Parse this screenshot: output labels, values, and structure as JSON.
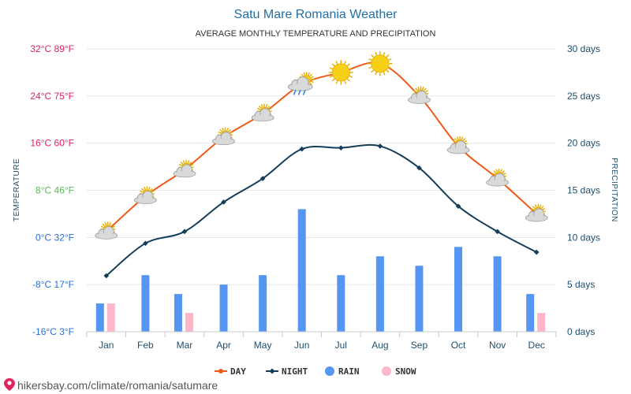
{
  "page": {
    "source_text": "hikersbay.com/climate/romania/satumare"
  },
  "chart_data": {
    "type": "line",
    "title": "Satu Mare Romania Weather",
    "subtitle": "AVERAGE MONTHLY TEMPERATURE AND PRECIPITATION",
    "ylabel_left": "TEMPERATURE",
    "ylabel_right": "PRECIPITATION",
    "categories": [
      "Jan",
      "Feb",
      "Mar",
      "Apr",
      "May",
      "Jun",
      "Jul",
      "Aug",
      "Sep",
      "Oct",
      "Nov",
      "Dec"
    ],
    "temp_ylim": [
      -16,
      32
    ],
    "precip_ylim": [
      0,
      30
    ],
    "left_ticks": [
      {
        "value": 32,
        "label": "32°C 89°F",
        "color": "#e0245e"
      },
      {
        "value": 24,
        "label": "24°C 75°F",
        "color": "#e0245e"
      },
      {
        "value": 16,
        "label": "16°C 60°F",
        "color": "#e0245e"
      },
      {
        "value": 8,
        "label": "8°C 46°F",
        "color": "#5cb85c"
      },
      {
        "value": 0,
        "label": "0°C 32°F",
        "color": "#2a6fd6"
      },
      {
        "value": -8,
        "label": "-8°C 17°F",
        "color": "#2a6fd6"
      },
      {
        "value": -16,
        "label": "-16°C 3°F",
        "color": "#2a6fd6"
      }
    ],
    "right_ticks": [
      {
        "value": 30,
        "label": "30 days"
      },
      {
        "value": 25,
        "label": "25 days"
      },
      {
        "value": 20,
        "label": "20 days"
      },
      {
        "value": 15,
        "label": "15 days"
      },
      {
        "value": 10,
        "label": "10 days"
      },
      {
        "value": 5,
        "label": "5 days"
      },
      {
        "value": 0,
        "label": "0 days"
      }
    ],
    "grid": true,
    "legend": "bottom",
    "series": [
      {
        "name": "DAY",
        "kind": "line",
        "color": "#f05a1a",
        "axis": "temp",
        "values": [
          1,
          7,
          11.5,
          17,
          21,
          26,
          28,
          29.5,
          24,
          15.5,
          10,
          4
        ]
      },
      {
        "name": "NIGHT",
        "kind": "line",
        "color": "#143d59",
        "axis": "temp",
        "values": [
          -6.5,
          -1,
          1,
          6,
          10,
          15,
          15.2,
          15.5,
          11.8,
          5.3,
          1,
          -2.5
        ]
      },
      {
        "name": "RAIN",
        "kind": "bar",
        "color": "#5596f2",
        "axis": "precip",
        "values": [
          3,
          6,
          4,
          5,
          6,
          13,
          6,
          8,
          7,
          9,
          8,
          4
        ]
      },
      {
        "name": "SNOW",
        "kind": "bar",
        "color": "#ffb6c8",
        "axis": "precip",
        "values": [
          3,
          0,
          2,
          0,
          0,
          0,
          0,
          0,
          0,
          0,
          0,
          2
        ]
      }
    ],
    "weather_icons": [
      "cloudy-sun",
      "cloudy-sun",
      "cloudy-sun",
      "cloudy-sun",
      "cloudy-sun",
      "rain-cloud-sun",
      "sun",
      "sun",
      "cloudy-sun",
      "cloudy-sun",
      "cloudy-sun",
      "cloudy-sun"
    ],
    "colors": {
      "grid": "#e6e6e6",
      "sun": "#f7d117",
      "sun_stroke": "#e8b10a",
      "cloud": "#d9d9d9",
      "cloud_dark": "#9a9a9a",
      "rain_drop": "#2f7fd6",
      "source_icon": "#e0245e"
    }
  }
}
